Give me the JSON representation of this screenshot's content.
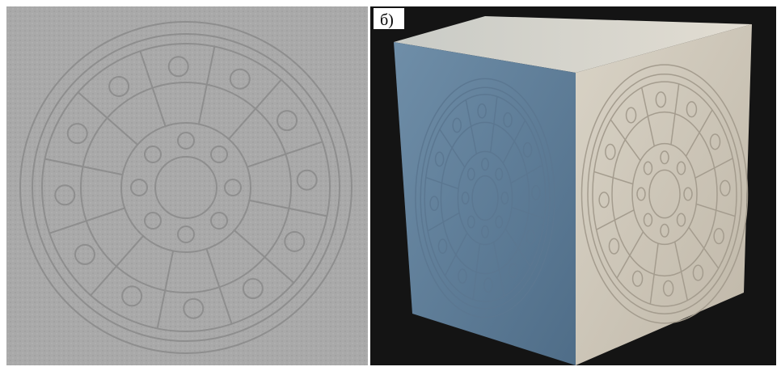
{
  "panels": [
    {
      "label": "б)"
    }
  ]
}
